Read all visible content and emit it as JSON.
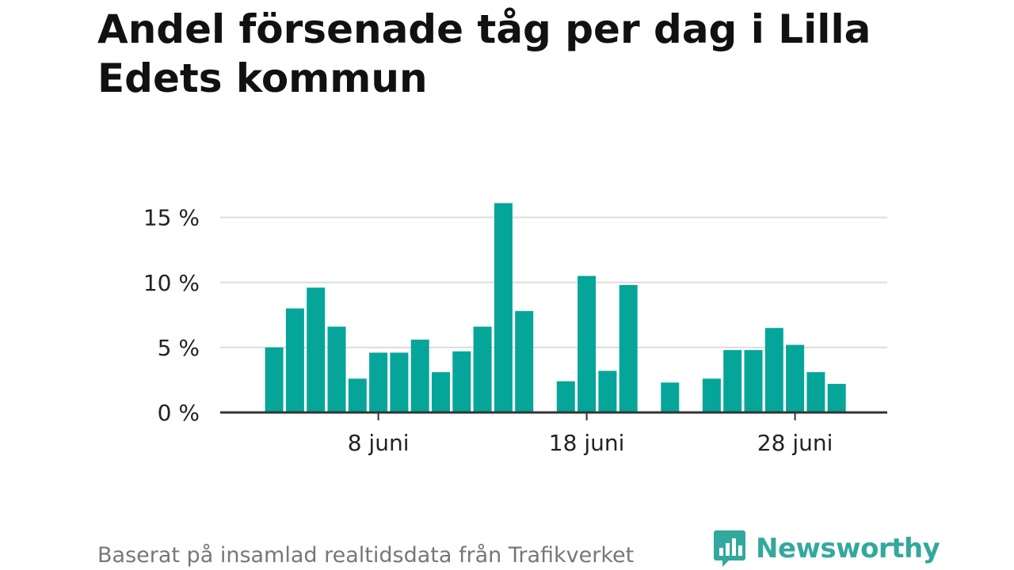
{
  "title": "Andel försenade tåg per dag i Lilla Edets kommun",
  "source": "Baserat på insamlad realtidsdata från Trafikverket",
  "brand": {
    "name": "Newsworthy",
    "icon": "bar-chart-icon"
  },
  "colors": {
    "bar": "#06a59a",
    "grid": "#dddddd",
    "axis": "#333333",
    "brand": "#33a89d"
  },
  "chart_data": {
    "type": "bar",
    "title": "Andel försenade tåg per dag i Lilla Edets kommun",
    "xlabel": "",
    "ylabel": "",
    "categories": [
      "1 juni",
      "2 juni",
      "3 juni",
      "4 juni",
      "5 juni",
      "6 juni",
      "7 juni",
      "8 juni",
      "9 juni",
      "10 juni",
      "11 juni",
      "12 juni",
      "13 juni",
      "14 juni",
      "15 juni",
      "16 juni",
      "17 juni",
      "18 juni",
      "19 juni",
      "20 juni",
      "21 juni",
      "22 juni",
      "23 juni",
      "24 juni",
      "25 juni",
      "26 juni",
      "27 juni",
      "28 juni",
      "29 juni",
      "30 juni"
    ],
    "values": [
      null,
      null,
      5.0,
      8.0,
      9.6,
      6.6,
      2.6,
      4.6,
      4.6,
      5.6,
      3.1,
      4.7,
      6.6,
      16.1,
      7.8,
      null,
      2.4,
      10.5,
      3.2,
      9.8,
      null,
      2.3,
      null,
      2.6,
      4.8,
      4.8,
      6.5,
      5.2,
      3.1,
      2.2
    ],
    "ylim": [
      0,
      16.5
    ],
    "yticks": [
      0,
      5,
      10,
      15
    ],
    "ytick_labels": [
      "0 %",
      "5 %",
      "10 %",
      "15 %"
    ],
    "xticks": [
      "8 juni",
      "18 juni",
      "28 juni"
    ],
    "grid": true
  }
}
